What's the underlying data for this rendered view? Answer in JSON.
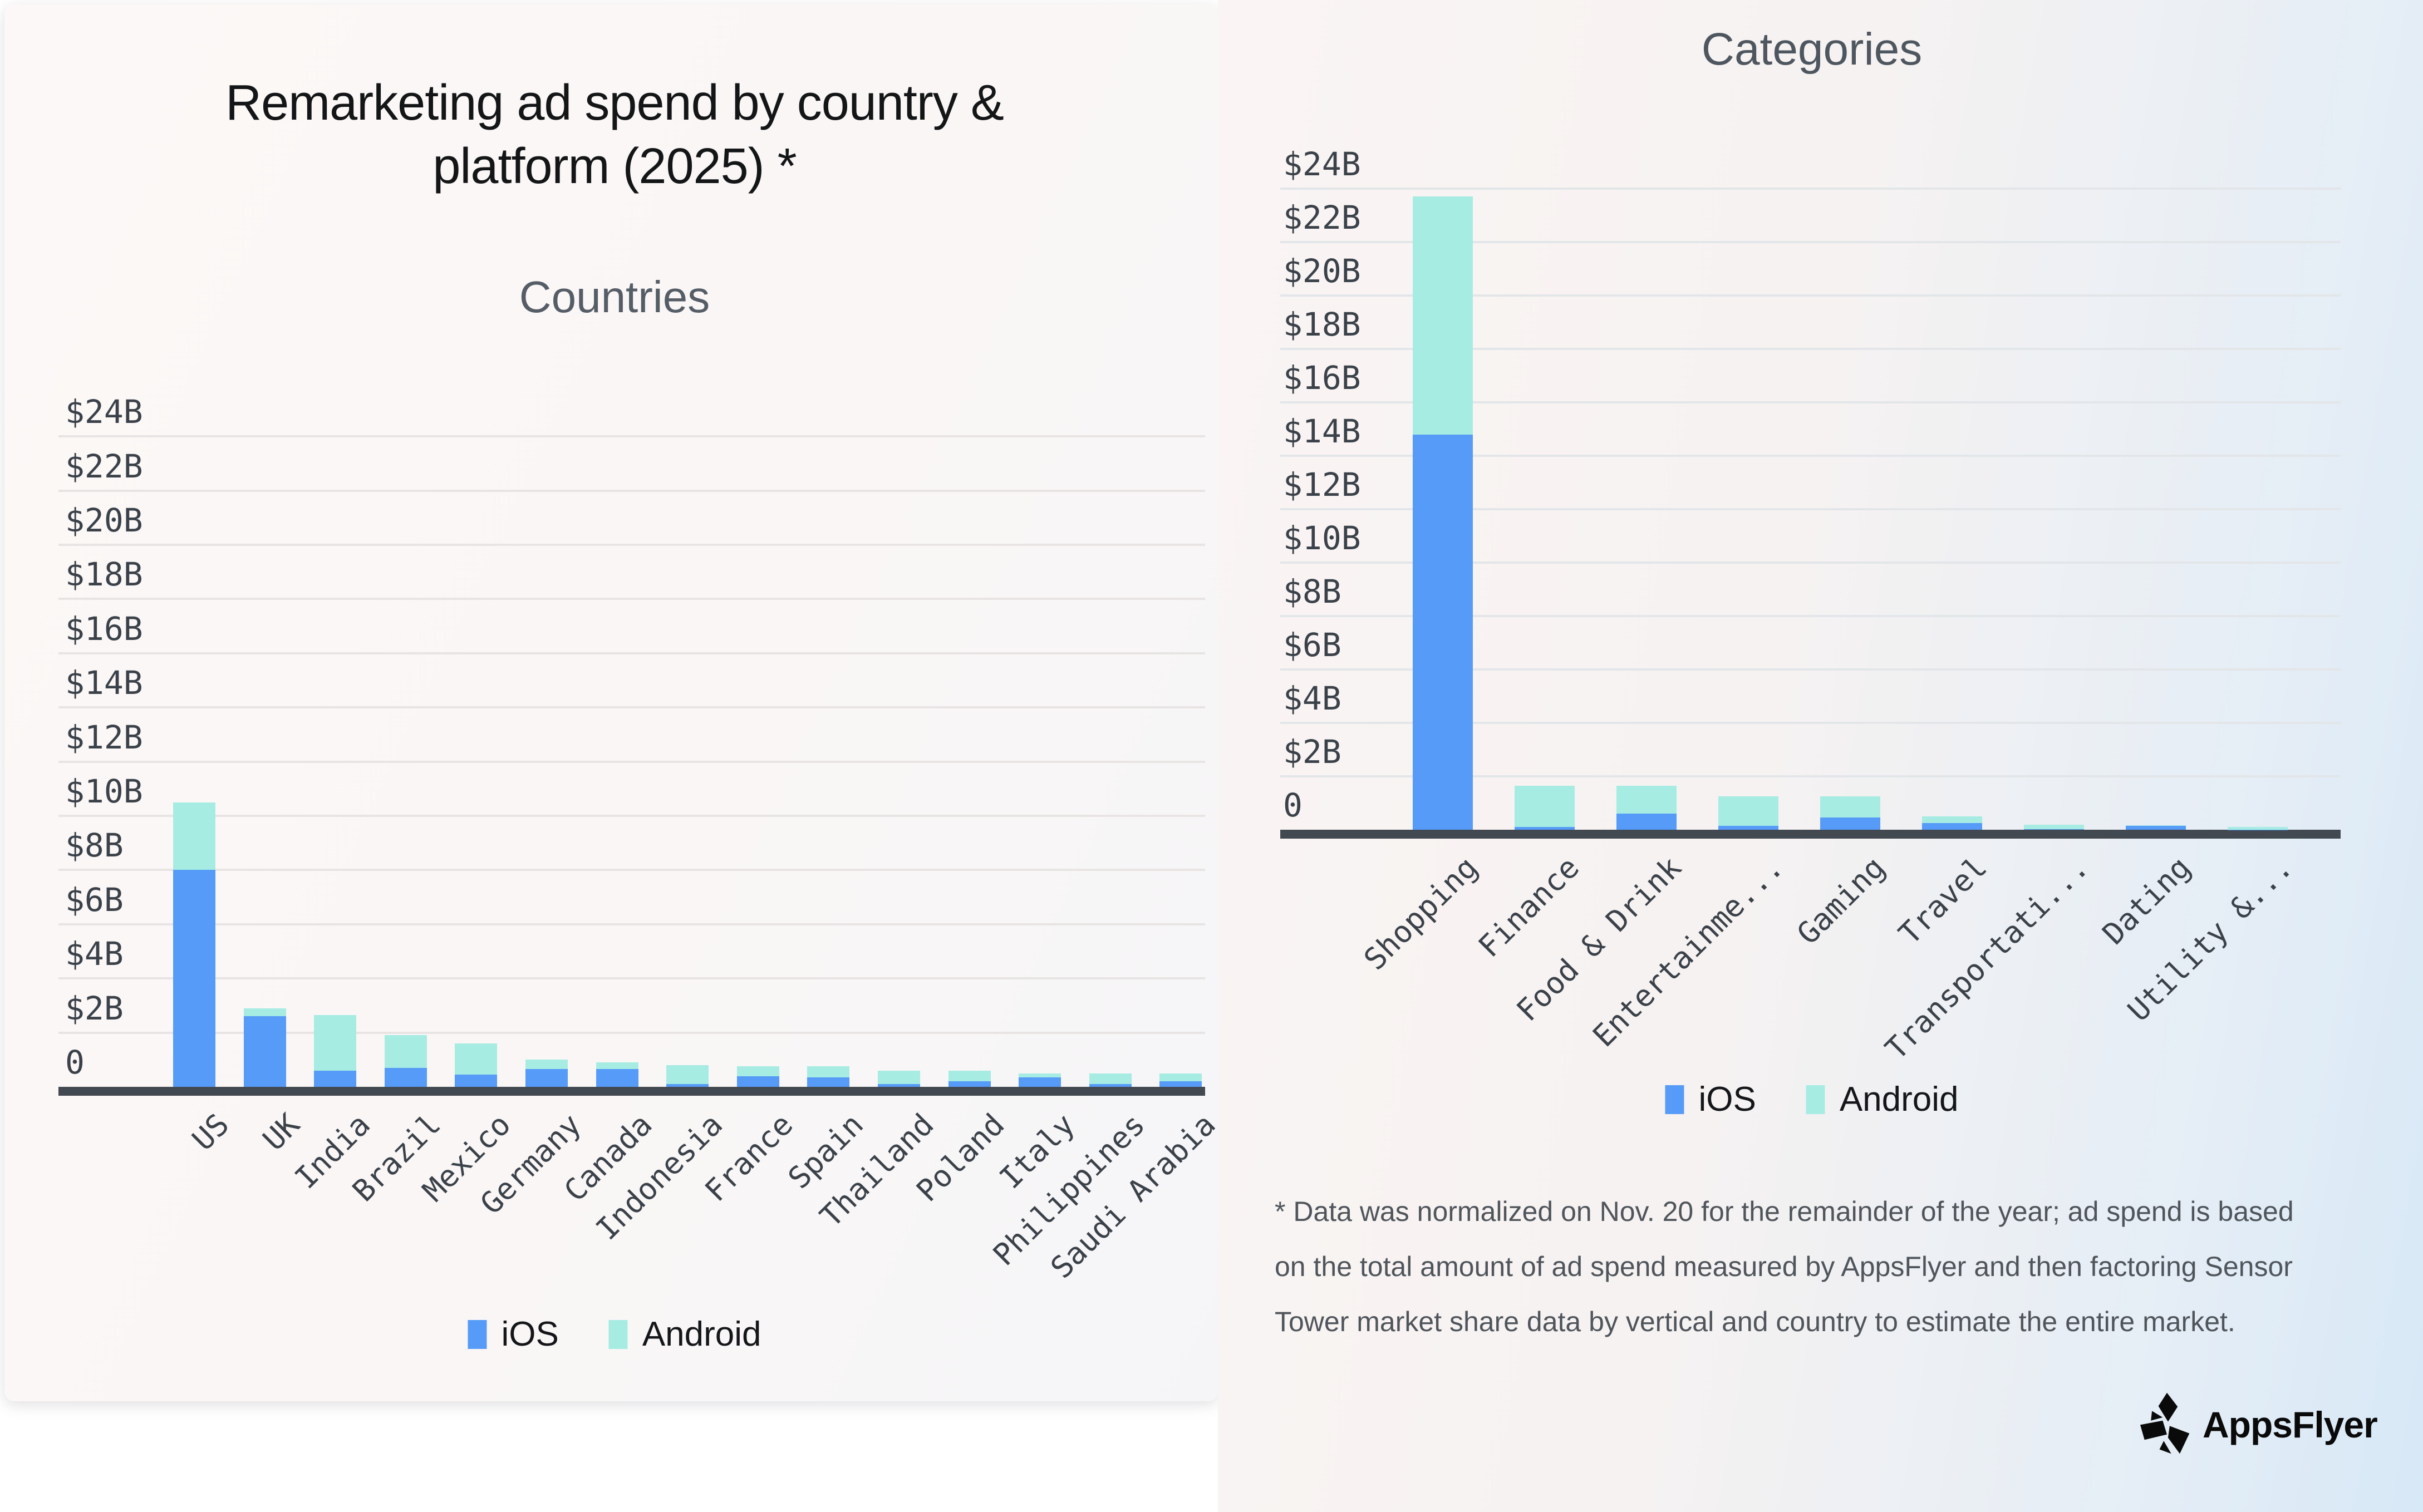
{
  "left_card": {
    "title_lines": [
      "Remarketing ad spend by country &",
      "platform (2025) *"
    ],
    "subtitle": "Countries"
  },
  "right_panel": {
    "title": "Categories",
    "footnote_lines": [
      "* Data was normalized on Nov. 20 for the remainder of the year; ad spend is based",
      "on the total amount of ad spend measured by AppsFlyer and then factoring Sensor",
      "Tower market share data by vertical and country to estimate the entire market."
    ],
    "logo_text": "AppsFlyer"
  },
  "colors": {
    "ios": "#569BF7",
    "android": "#A6ECE2",
    "axis": "#424950",
    "grid_left": "#E8E4E3",
    "grid_right": "#E3E6E9",
    "tick_text": "#3A4149",
    "title_text": "#131517",
    "subtitle_text": "#555D66",
    "footnote_text": "#4F555B",
    "logo_color": "#0A0A0A"
  },
  "chart_data": [
    {
      "id": "countries",
      "type": "bar",
      "stacked": true,
      "title": "Countries",
      "categories": [
        "US",
        "UK",
        "India",
        "Brazil",
        "Mexico",
        "Germany",
        "Canada",
        "Indonesia",
        "France",
        "Spain",
        "Thailand",
        "Poland",
        "Italy",
        "Philippines",
        "Saudi Arabia"
      ],
      "series": [
        {
          "name": "iOS",
          "color_key": "ios",
          "values": [
            8.0,
            2.6,
            0.6,
            0.7,
            0.45,
            0.65,
            0.65,
            0.1,
            0.4,
            0.35,
            0.1,
            0.2,
            0.35,
            0.1,
            0.2
          ]
        },
        {
          "name": "Android",
          "color_key": "android",
          "values": [
            2.5,
            0.3,
            2.05,
            1.2,
            1.15,
            0.35,
            0.25,
            0.7,
            0.35,
            0.4,
            0.5,
            0.4,
            0.15,
            0.4,
            0.3
          ]
        }
      ],
      "ylim": [
        0,
        24
      ],
      "ytick_step": 2,
      "ytick_labels": [
        "0",
        "$2B",
        "$4B",
        "$6B",
        "$8B",
        "$10B",
        "$12B",
        "$14B",
        "$16B",
        "$18B",
        "$20B",
        "$22B",
        "$24B"
      ],
      "grid": true,
      "legend_position": "bottom"
    },
    {
      "id": "categories",
      "type": "bar",
      "stacked": true,
      "title": "Categories",
      "categories": [
        "Shopping",
        "Finance",
        "Food & Drink",
        "Entertainme...",
        "Gaming",
        "Travel",
        "Transportati...",
        "Dating",
        "Utility &..."
      ],
      "series": [
        {
          "name": "iOS",
          "color_key": "ios",
          "values": [
            14.8,
            0.1,
            0.6,
            0.15,
            0.45,
            0.25,
            0.03,
            0.15,
            0.01
          ]
        },
        {
          "name": "Android",
          "color_key": "android",
          "values": [
            8.9,
            1.55,
            1.05,
            1.1,
            0.8,
            0.25,
            0.16,
            0.02,
            0.09
          ]
        }
      ],
      "ylim": [
        0,
        24
      ],
      "ytick_step": 2,
      "ytick_labels": [
        "0",
        "$2B",
        "$4B",
        "$6B",
        "$8B",
        "$10B",
        "$12B",
        "$14B",
        "$16B",
        "$18B",
        "$20B",
        "$22B",
        "$24B"
      ],
      "grid": true,
      "legend_position": "bottom"
    }
  ]
}
